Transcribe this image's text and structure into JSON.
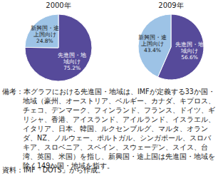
{
  "chart_data": [
    {
      "type": "pie",
      "title": "2000年",
      "categories": [
        "先進国・地域向け",
        "新興国・途上国向け"
      ],
      "values": [
        75.2,
        24.8
      ],
      "value_labels": [
        "75.2%",
        "24.8%"
      ],
      "colors": [
        "#564a9a",
        "#9dc3e6"
      ],
      "data_labels": true
    },
    {
      "type": "pie",
      "title": "2009年",
      "categories": [
        "先進国・地域向け",
        "新興国・途上国向け"
      ],
      "values": [
        56.6,
        43.4
      ],
      "value_labels": [
        "56.6%",
        "43.4%"
      ],
      "colors": [
        "#564a9a",
        "#9dc3e6"
      ],
      "data_labels": true
    }
  ],
  "note": "備考：本グラフにおける先進国・地域は、IMFが定義する33か国・地域（豪州、オーストリア、ベルギー、カナダ、キプロス、チェコ、デンマーク、フィンランド、フランス、ドイツ、ギリシャ、香港、アイスランド、アイルランド、イスラエル、イタリア、日本、韓国、ルクセンブルグ、マルタ、オランダ、NZ、ノルウェー、ポルトガル、シンガポール、スロバキア、スロベニア、スペイン、スウェーデン、スイス、台湾、英国、米国）を指し、新興国・途上国は先進国・地域を除く149か国・地域を指す。",
  "source": "資料：IMF「DOTS」から作成。"
}
